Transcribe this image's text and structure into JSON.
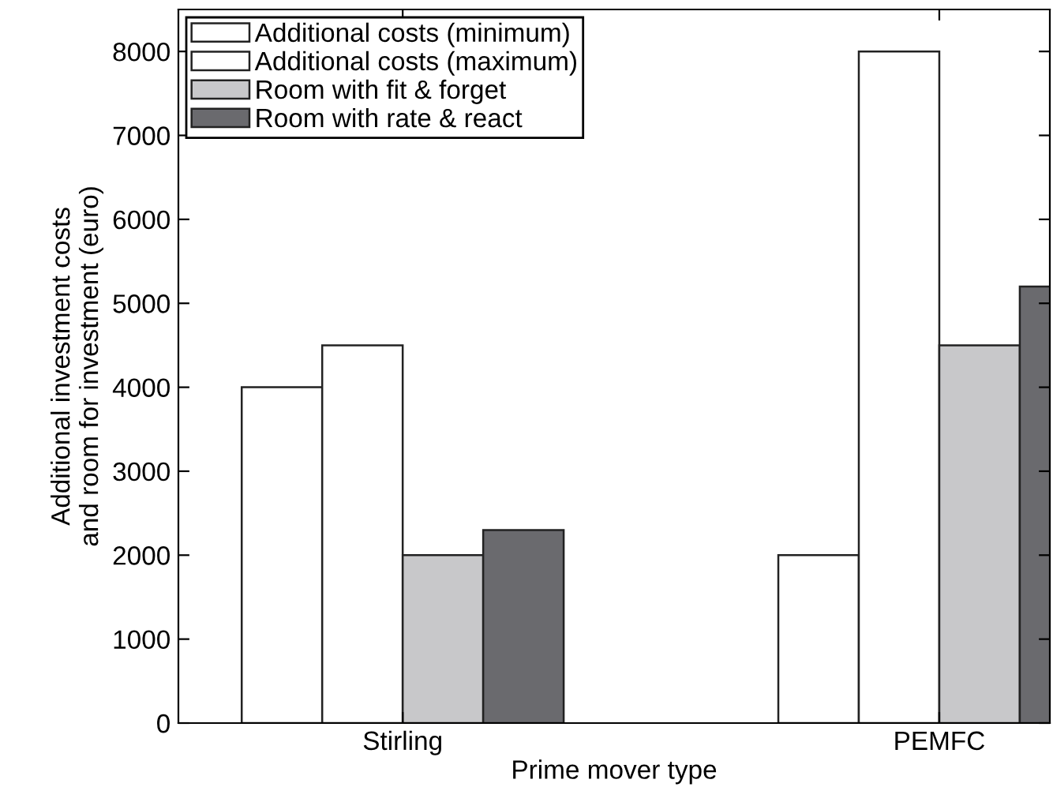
{
  "chart_data": {
    "type": "bar",
    "xlabel": "Prime mover type",
    "ylabel": "Additional investment costs\nand room for investment (euro)",
    "categories": [
      "Stirling",
      "PEMFC"
    ],
    "series": [
      {
        "name": "Additional costs (minimum)",
        "color": "#ffffff",
        "values": [
          4000,
          2000
        ]
      },
      {
        "name": "Additional costs (maximum)",
        "color": "#ffffff",
        "values": [
          4500,
          8000
        ]
      },
      {
        "name": "Room with fit & forget",
        "color": "#c8c8ca",
        "values": [
          2000,
          4500
        ]
      },
      {
        "name": "Room with rate & react",
        "color": "#6a6a6e",
        "values": [
          2300,
          5200
        ]
      }
    ],
    "ylim": [
      0,
      8500
    ],
    "yticks": [
      0,
      1000,
      2000,
      3000,
      4000,
      5000,
      6000,
      7000,
      8000
    ],
    "grid": false,
    "legend": "top left"
  }
}
